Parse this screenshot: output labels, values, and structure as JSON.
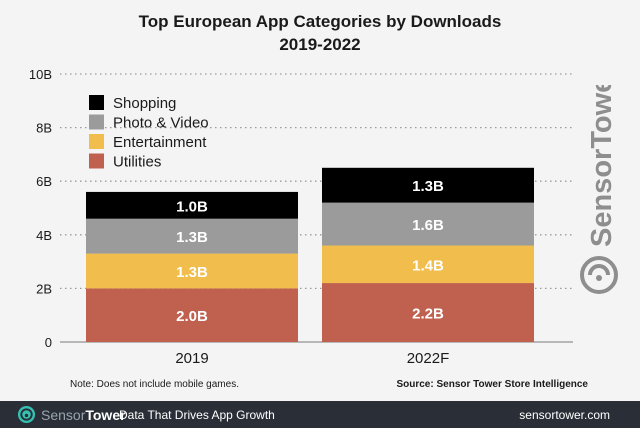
{
  "chart_data": {
    "type": "bar",
    "stacked": true,
    "title": "Top European App Categories by Downloads",
    "subtitle": "2019-2022",
    "categories": [
      "2019",
      "2022F"
    ],
    "series": [
      {
        "name": "Utilities",
        "values": [
          2.0,
          2.2
        ],
        "labels": [
          "2.0B",
          "2.2B"
        ],
        "color": "#c0614f",
        "label_color": "#ffffff"
      },
      {
        "name": "Entertainment",
        "values": [
          1.3,
          1.4
        ],
        "labels": [
          "1.3B",
          "1.4B"
        ],
        "color": "#f1bd4c",
        "label_color": "#ffffff"
      },
      {
        "name": "Photo & Video",
        "values": [
          1.3,
          1.6
        ],
        "labels": [
          "1.3B",
          "1.6B"
        ],
        "color": "#9b9b9b",
        "label_color": "#ffffff"
      },
      {
        "name": "Shopping",
        "values": [
          1.0,
          1.3
        ],
        "labels": [
          "1.0B",
          "1.3B"
        ],
        "color": "#000000",
        "label_color": "#ffffff"
      }
    ],
    "legend_order": [
      "Shopping",
      "Photo & Video",
      "Entertainment",
      "Utilities"
    ],
    "legend_position": "top-left",
    "ylim": [
      0,
      10
    ],
    "yticks": [
      0,
      2,
      4,
      6,
      8,
      10
    ],
    "ytick_labels": [
      "0",
      "2B",
      "4B",
      "6B",
      "8B",
      "10B"
    ],
    "grid": "dotted horizontal"
  },
  "note": "Note: Does not include mobile games.",
  "source": "Source: Sensor Tower Store Intelligence",
  "watermark": "SensorTower",
  "footer": {
    "brand_part1": "Sensor",
    "brand_part2": "Tower",
    "tagline": "Data That Drives App Growth",
    "url": "sensortower.com",
    "logo_icon": "sensor-tower-logo-icon"
  }
}
